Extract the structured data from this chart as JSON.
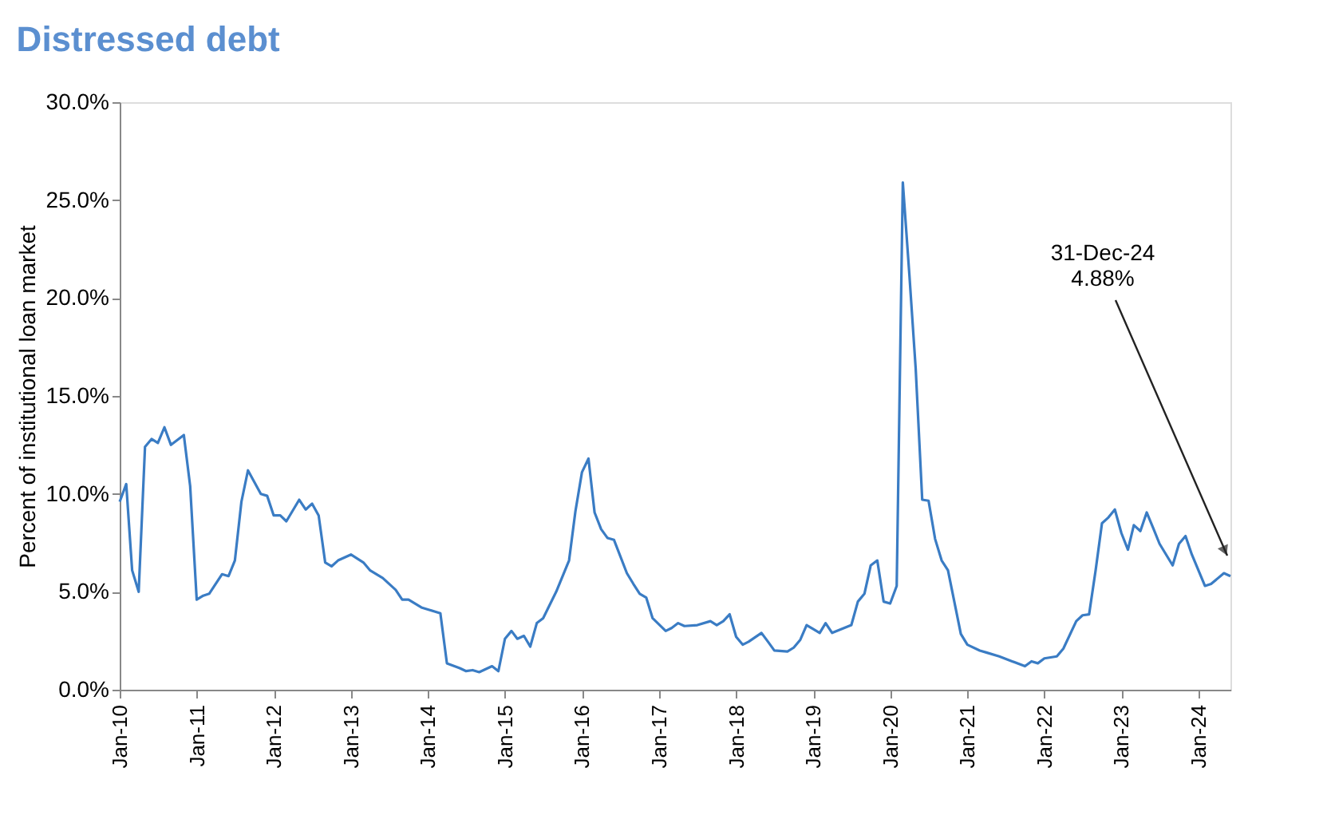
{
  "chart_data": {
    "type": "line",
    "title": "Distressed debt",
    "ylabel": "Percent of institutional loan market",
    "x": [
      "2010-01",
      "2010-02",
      "2010-03",
      "2010-04",
      "2010-05",
      "2010-06",
      "2010-07",
      "2010-08",
      "2010-09",
      "2010-11",
      "2010-12",
      "2011-01",
      "2011-02",
      "2011-03",
      "2011-05",
      "2011-06",
      "2011-07",
      "2011-08",
      "2011-09",
      "2011-11",
      "2011-12",
      "2012-01",
      "2012-02",
      "2012-03",
      "2012-05",
      "2012-06",
      "2012-07",
      "2012-08",
      "2012-09",
      "2012-10",
      "2012-11",
      "2013-01",
      "2013-03",
      "2013-04",
      "2013-06",
      "2013-08",
      "2013-09",
      "2013-10",
      "2013-12",
      "2014-01",
      "2014-03",
      "2014-04",
      "2014-06",
      "2014-07",
      "2014-08",
      "2014-09",
      "2014-11",
      "2014-12",
      "2015-01",
      "2015-02",
      "2015-03",
      "2015-04",
      "2015-05",
      "2015-06",
      "2015-07",
      "2015-09",
      "2015-11",
      "2015-12",
      "2016-01",
      "2016-02",
      "2016-03",
      "2016-04",
      "2016-05",
      "2016-06",
      "2016-08",
      "2016-09",
      "2016-10",
      "2016-11",
      "2016-12",
      "2017-02",
      "2017-03",
      "2017-04",
      "2017-05",
      "2017-07",
      "2017-09",
      "2017-10",
      "2017-11",
      "2017-12",
      "2018-01",
      "2018-02",
      "2018-03",
      "2018-05",
      "2018-06",
      "2018-07",
      "2018-09",
      "2018-10",
      "2018-11",
      "2018-12",
      "2019-02",
      "2019-03",
      "2019-04",
      "2019-07",
      "2019-08",
      "2019-09",
      "2019-10",
      "2019-11",
      "2019-12",
      "2020-01",
      "2020-02",
      "2020-03",
      "2020-04",
      "2020-05",
      "2020-06",
      "2020-07",
      "2020-08",
      "2020-09",
      "2020-10",
      "2020-12",
      "2021-01",
      "2021-03",
      "2021-04",
      "2021-06",
      "2021-08",
      "2021-10",
      "2021-11",
      "2021-12",
      "2022-01",
      "2022-03",
      "2022-04",
      "2022-06",
      "2022-07",
      "2022-08",
      "2022-09",
      "2022-10",
      "2022-11",
      "2022-12",
      "2023-01",
      "2023-02",
      "2023-03",
      "2023-04",
      "2023-05",
      "2023-06",
      "2023-07",
      "2023-09",
      "2023-10",
      "2023-11",
      "2023-12",
      "2024-02",
      "2024-03",
      "2024-05",
      "2024-06"
    ],
    "series": [
      {
        "color": "#3a7cc4",
        "values": [
          9.6,
          10.5,
          6.1,
          5.0,
          12.4,
          12.8,
          12.6,
          13.4,
          12.5,
          13.0,
          10.4,
          4.6,
          4.8,
          4.9,
          5.9,
          5.8,
          6.6,
          9.6,
          11.2,
          10.0,
          9.9,
          8.9,
          8.9,
          8.6,
          9.7,
          9.2,
          9.5,
          8.9,
          6.5,
          6.3,
          6.6,
          6.9,
          6.5,
          6.1,
          5.7,
          5.1,
          4.6,
          4.6,
          4.2,
          4.1,
          3.9,
          1.35,
          1.1,
          0.95,
          1.0,
          0.9,
          1.2,
          0.95,
          2.6,
          3.0,
          2.6,
          2.75,
          2.2,
          3.4,
          3.65,
          5.0,
          6.6,
          9.1,
          11.1,
          11.8,
          9.05,
          8.2,
          7.75,
          7.65,
          5.95,
          5.4,
          4.9,
          4.7,
          3.65,
          3.0,
          3.15,
          3.4,
          3.25,
          3.3,
          3.5,
          3.3,
          3.5,
          3.85,
          2.7,
          2.3,
          2.45,
          2.9,
          2.45,
          2.0,
          1.95,
          2.15,
          2.55,
          3.3,
          2.9,
          3.4,
          2.9,
          3.3,
          4.5,
          4.9,
          6.35,
          6.6,
          4.5,
          4.4,
          5.3,
          25.9,
          21.2,
          16.4,
          9.7,
          9.65,
          7.7,
          6.6,
          6.1,
          2.85,
          2.3,
          2.0,
          1.9,
          1.7,
          1.45,
          1.2,
          1.45,
          1.35,
          1.6,
          1.7,
          2.1,
          3.5,
          3.8,
          3.85,
          6.1,
          8.5,
          8.8,
          9.2,
          8.0,
          7.15,
          8.4,
          8.1,
          9.05,
          8.25,
          7.45,
          6.35,
          7.45,
          7.85,
          6.9,
          5.3,
          5.4,
          5.95,
          5.8
        ]
      }
    ],
    "xlim": [
      "2010-01",
      "2024-06"
    ],
    "xticks": [
      {
        "value": "2010-01",
        "label": "Jan-10"
      },
      {
        "value": "2011-01",
        "label": "Jan-11"
      },
      {
        "value": "2012-01",
        "label": "Jan-12"
      },
      {
        "value": "2013-01",
        "label": "Jan-13"
      },
      {
        "value": "2014-01",
        "label": "Jan-14"
      },
      {
        "value": "2015-01",
        "label": "Jan-15"
      },
      {
        "value": "2016-01",
        "label": "Jan-16"
      },
      {
        "value": "2017-01",
        "label": "Jan-17"
      },
      {
        "value": "2018-01",
        "label": "Jan-18"
      },
      {
        "value": "2019-01",
        "label": "Jan-19"
      },
      {
        "value": "2020-01",
        "label": "Jan-20"
      },
      {
        "value": "2021-01",
        "label": "Jan-21"
      },
      {
        "value": "2022-01",
        "label": "Jan-22"
      },
      {
        "value": "2023-01",
        "label": "Jan-23"
      },
      {
        "value": "2024-01",
        "label": "Jan-24"
      }
    ],
    "ylim": [
      0,
      30
    ],
    "yticks": [
      {
        "value": 0,
        "label": "0.0%"
      },
      {
        "value": 5,
        "label": "5.0%"
      },
      {
        "value": 10,
        "label": "10.0%"
      },
      {
        "value": 15,
        "label": "15.0%"
      },
      {
        "value": 20,
        "label": "20.0%"
      },
      {
        "value": 25,
        "label": "25.0%"
      },
      {
        "value": 30,
        "label": "30.0%"
      }
    ],
    "annotations": [
      "31-Dec-24\n4.88%"
    ],
    "grid": false,
    "legend": false
  }
}
